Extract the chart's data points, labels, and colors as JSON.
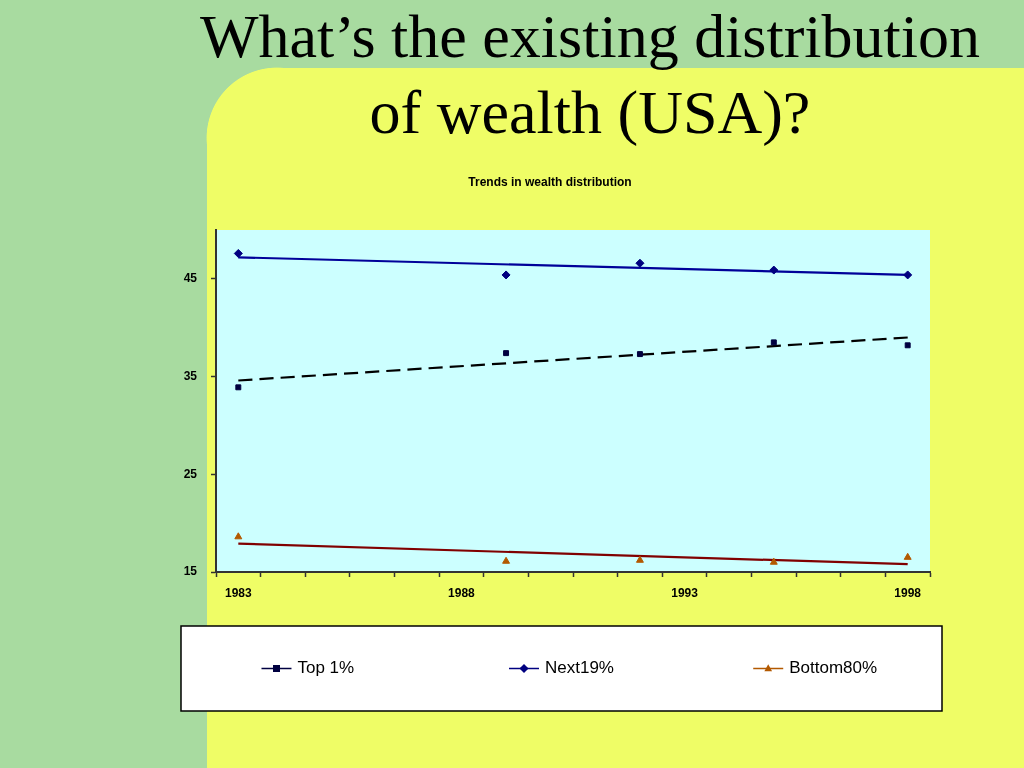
{
  "chart_data": {
    "type": "scatter",
    "title": "What’s the existing distribution of wealth (USA)?",
    "subtitle": "Trends in wealth distribution",
    "series": [
      {
        "name": "Top 1%",
        "type": "scatter",
        "color": "#000040",
        "marker": "square",
        "x": [
          1983,
          1989,
          1992,
          1995,
          1998
        ],
        "values": [
          33.9,
          37.4,
          37.3,
          38.5,
          38.2
        ]
      },
      {
        "name": "Next19%",
        "type": "scatter",
        "color": "#000080",
        "marker": "diamond",
        "x": [
          1983,
          1989,
          1992,
          1995,
          1998
        ],
        "values": [
          47.6,
          45.4,
          46.6,
          45.9,
          45.4
        ]
      },
      {
        "name": "Bottom80%",
        "type": "scatter",
        "color": "#b35900",
        "marker": "triangle",
        "x": [
          1983,
          1989,
          1992,
          1995,
          1998
        ],
        "values": [
          18.6,
          16.1,
          16.2,
          16.0,
          16.5
        ]
      },
      {
        "type": "line",
        "color": "#000000",
        "line_style": "dashed",
        "marker": "none",
        "x": [
          1983,
          1998
        ],
        "values": [
          34.6,
          39.0
        ]
      },
      {
        "type": "line",
        "color": "#000099",
        "line_style": "solid",
        "marker": "none",
        "x": [
          1983,
          1998
        ],
        "values": [
          47.2,
          45.4
        ]
      },
      {
        "type": "line",
        "color": "#800000",
        "line_style": "solid",
        "marker": "none",
        "x": [
          1983,
          1998
        ],
        "values": [
          17.9,
          15.8
        ]
      }
    ],
    "xlim": [
      1982.5,
      1998.5
    ],
    "xticks": [
      {
        "value": 1982.5,
        "label": null
      },
      1983,
      {
        "value": 1983.5,
        "label": null
      },
      {
        "value": 1984.5,
        "label": null
      },
      {
        "value": 1985.5,
        "label": null
      },
      {
        "value": 1986.5,
        "label": null
      },
      {
        "value": 1987.5,
        "label": null
      },
      1988,
      {
        "value": 1988.5,
        "label": null
      },
      {
        "value": 1989.5,
        "label": null
      },
      {
        "value": 1990.5,
        "label": null
      },
      {
        "value": 1991.5,
        "label": null
      },
      {
        "value": 1992.5,
        "label": null
      },
      1993,
      {
        "value": 1993.5,
        "label": null
      },
      {
        "value": 1994.5,
        "label": null
      },
      {
        "value": 1995.5,
        "label": null
      },
      {
        "value": 1996.5,
        "label": null
      },
      {
        "value": 1997.5,
        "label": null
      },
      1998,
      {
        "value": 1998.5,
        "label": null
      }
    ],
    "ylim": [
      15,
      50
    ],
    "yticks": [
      15,
      25,
      35,
      45
    ],
    "legend": "bottom"
  }
}
